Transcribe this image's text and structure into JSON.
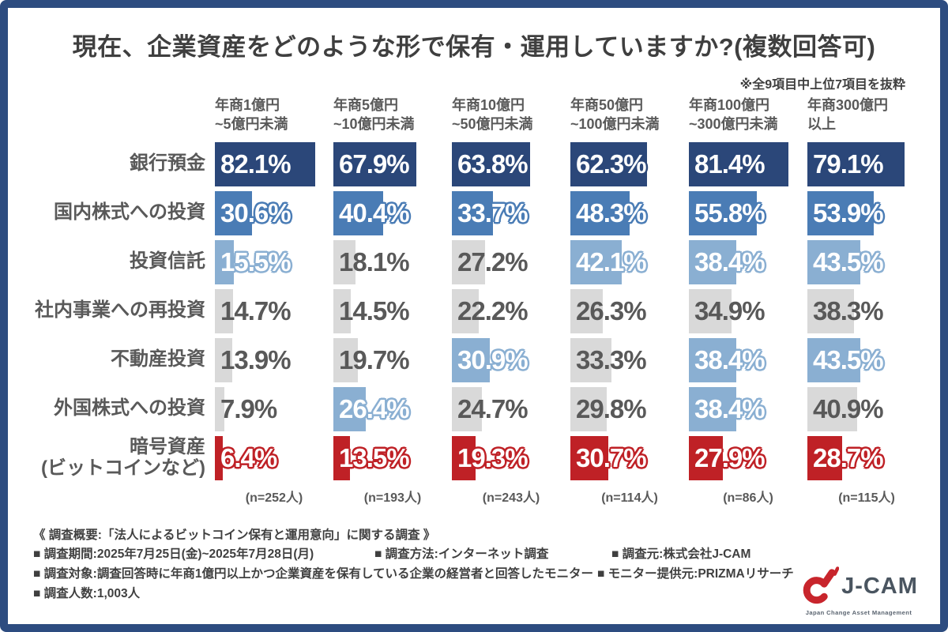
{
  "title": "現在、企業資産をどのような形で保有・運用していますか?(複数回答可)",
  "note": "※全9項目中上位7項目を抜粋",
  "colors": {
    "frame": "#2d4c80",
    "top1": "#2b4779",
    "top2": "#4a7cb5",
    "top3": "#8aafd2",
    "other": "#d9d9d9",
    "crypto": "#bf2126",
    "title_text": "#3f3f3f",
    "label_text": "#595959",
    "logo_red": "#c8252c",
    "logo_gray": "#4a5560"
  },
  "chart_data": {
    "type": "bar",
    "orientation": "horizontal",
    "unit": "%",
    "value_scale_note": "bar width proportional to percent, multiple-answer survey",
    "style_legend": {
      "top1": "1st highest in column (dark navy)",
      "top2": "2nd highest in column (medium blue)",
      "top3": "3rd highest in column incl. ties (light blue)",
      "other": "other (gray)",
      "crypto": "crypto-asset row highlight (red)"
    },
    "columns": [
      {
        "line1": "年商1億円",
        "line2": "~5億円未満",
        "n": "(n=252人)"
      },
      {
        "line1": "年商5億円",
        "line2": "~10億円未満",
        "n": "(n=193人)"
      },
      {
        "line1": "年商10億円",
        "line2": "~50億円未満",
        "n": "(n=243人)"
      },
      {
        "line1": "年商50億円",
        "line2": "~100億円未満",
        "n": "(n=114人)"
      },
      {
        "line1": "年商100億円",
        "line2": "~300億円未満",
        "n": "(n=86人)"
      },
      {
        "line1": "年商300億円",
        "line2": "以上",
        "n": "(n=115人)"
      }
    ],
    "rows": [
      {
        "label": "銀行預金",
        "values": [
          82.1,
          67.9,
          63.8,
          62.3,
          81.4,
          79.1
        ],
        "styles": [
          "top1",
          "top1",
          "top1",
          "top1",
          "top1",
          "top1"
        ]
      },
      {
        "label": "国内株式への投資",
        "values": [
          30.6,
          40.4,
          33.7,
          48.3,
          55.8,
          53.9
        ],
        "styles": [
          "top2",
          "top2",
          "top2",
          "top2",
          "top2",
          "top2"
        ]
      },
      {
        "label": "投資信託",
        "values": [
          15.5,
          18.1,
          27.2,
          42.1,
          38.4,
          43.5
        ],
        "styles": [
          "top3",
          "other",
          "other",
          "top3",
          "top3",
          "top3"
        ]
      },
      {
        "label": "社内事業への再投資",
        "values": [
          14.7,
          14.5,
          22.2,
          26.3,
          34.9,
          38.3
        ],
        "styles": [
          "other",
          "other",
          "other",
          "other",
          "other",
          "other"
        ]
      },
      {
        "label": "不動産投資",
        "values": [
          13.9,
          19.7,
          30.9,
          33.3,
          38.4,
          43.5
        ],
        "styles": [
          "other",
          "other",
          "top3",
          "other",
          "top3",
          "top3"
        ]
      },
      {
        "label": "外国株式への投資",
        "values": [
          7.9,
          26.4,
          24.7,
          29.8,
          38.4,
          40.9
        ],
        "styles": [
          "other",
          "top3",
          "other",
          "other",
          "top3",
          "other"
        ]
      },
      {
        "label": "暗号資産",
        "label2": "(ビットコインなど)",
        "values": [
          6.4,
          13.5,
          19.3,
          30.7,
          27.9,
          28.7
        ],
        "styles": [
          "crypto",
          "crypto",
          "crypto",
          "crypto",
          "crypto",
          "crypto"
        ]
      }
    ]
  },
  "footer": {
    "overview": "《 調査概要:「法人によるビットコイン保有と運用意向」に関する調査 》",
    "period": "■ 調査期間:2025年7月25日(金)~2025年7月28日(月)",
    "method": "■ 調査方法:インターネット調査",
    "source": "■ 調査元:株式会社J-CAM",
    "target": "■ 調査対象:調査回答時に年商1億円以上かつ企業資産を保有している企業の経営者と回答したモニター",
    "monitor": "■ モニター提供元:PRIZMAリサーチ",
    "count": "■ 調査人数:1,003人"
  },
  "logo": {
    "name": "J-CAM",
    "tagline": "Japan Change Asset Management"
  }
}
